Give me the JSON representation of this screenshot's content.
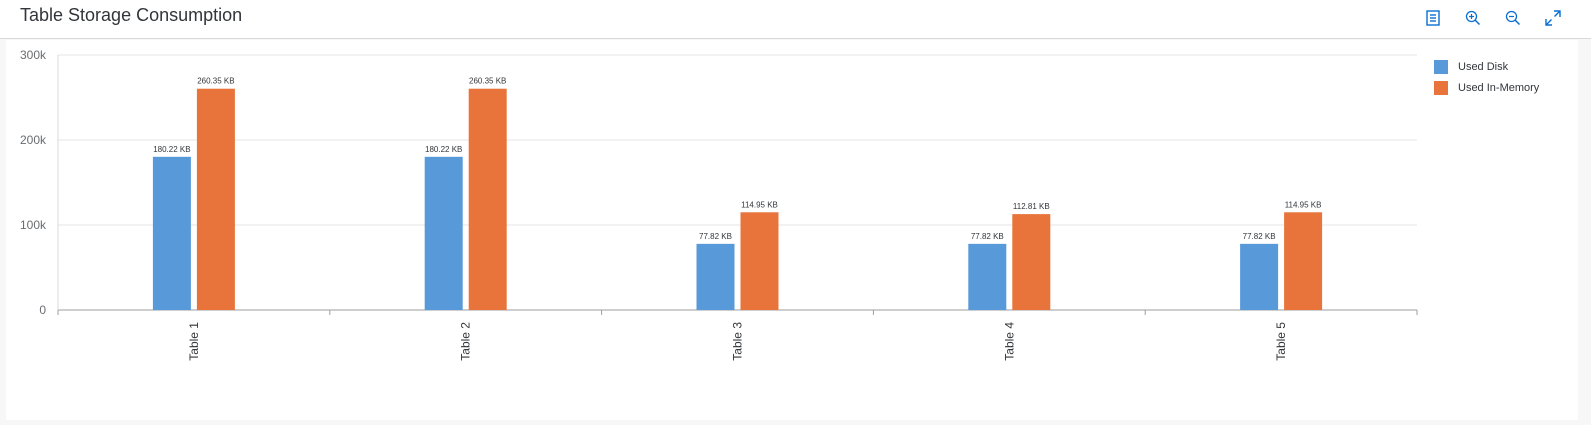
{
  "header": {
    "title": "Table Storage Consumption",
    "toolbar": [
      {
        "icon": "table-view-icon",
        "label": "Table view"
      },
      {
        "icon": "zoom-in-icon",
        "label": "Zoom in"
      },
      {
        "icon": "zoom-out-icon",
        "label": "Zoom out"
      },
      {
        "icon": "fullscreen-icon",
        "label": "Full screen"
      }
    ]
  },
  "colors": {
    "used_disk": "#5899da",
    "used_in_memory": "#e8743b",
    "accent": "#0a6ed1"
  },
  "chart_data": {
    "type": "bar",
    "title": "Table Storage Consumption",
    "categories": [
      "Table 1",
      "Table 2",
      "Table 3",
      "Table 4",
      "Table 5"
    ],
    "series": [
      {
        "name": "Used Disk",
        "color": "#5899da",
        "values": [
          180220,
          180220,
          77820,
          77820,
          77820
        ],
        "labels": [
          "180.22 KB",
          "180.22 KB",
          "77.82 KB",
          "77.82 KB",
          "77.82 KB"
        ]
      },
      {
        "name": "Used In-Memory",
        "color": "#e8743b",
        "values": [
          260350,
          260350,
          114950,
          112810,
          114950
        ],
        "labels": [
          "260.35 KB",
          "260.35 KB",
          "114.95 KB",
          "112.81 KB",
          "114.95 KB"
        ]
      }
    ],
    "yticks": [
      {
        "value": 0,
        "label": "0"
      },
      {
        "value": 100000,
        "label": "100k"
      },
      {
        "value": 200000,
        "label": "200k"
      },
      {
        "value": 300000,
        "label": "300k"
      }
    ],
    "ylim": [
      0,
      300000
    ],
    "grid": true,
    "legend": "right"
  }
}
